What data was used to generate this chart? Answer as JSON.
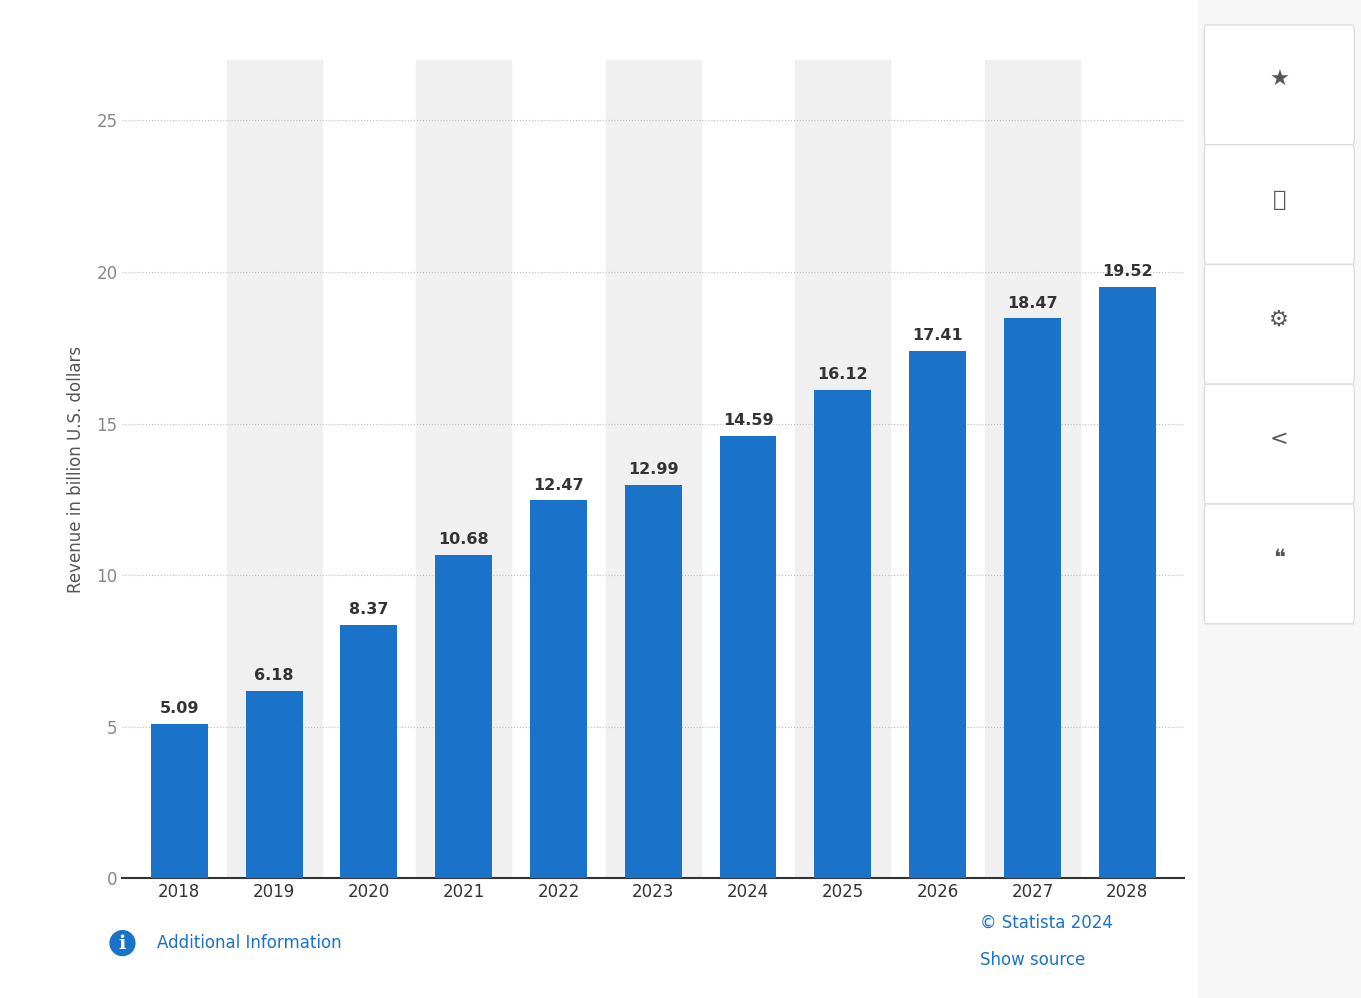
{
  "years": [
    "2018",
    "2019",
    "2020",
    "2021",
    "2022",
    "2023",
    "2024",
    "2025",
    "2026",
    "2027",
    "2028"
  ],
  "values": [
    5.09,
    6.18,
    8.37,
    10.68,
    12.47,
    12.99,
    14.59,
    16.12,
    17.41,
    18.47,
    19.52
  ],
  "bar_color": "#1a73c8",
  "alt_indices": [
    1,
    3,
    5,
    7,
    9
  ],
  "ylabel": "Revenue in billion U.S. dollars",
  "ylim": [
    0,
    27
  ],
  "yticks": [
    0,
    5,
    10,
    15,
    20,
    25
  ],
  "background_color": "#ffffff",
  "plot_bg_color": "#f0f0f0",
  "grid_color": "#bbbbbb",
  "label_fontsize": 11.5,
  "tick_fontsize": 12,
  "ylabel_fontsize": 12,
  "footer_left": "Additional Information",
  "footer_statista": "© Statista 2024",
  "footer_show": "Show source",
  "footer_color_blue": "#1a73c8"
}
